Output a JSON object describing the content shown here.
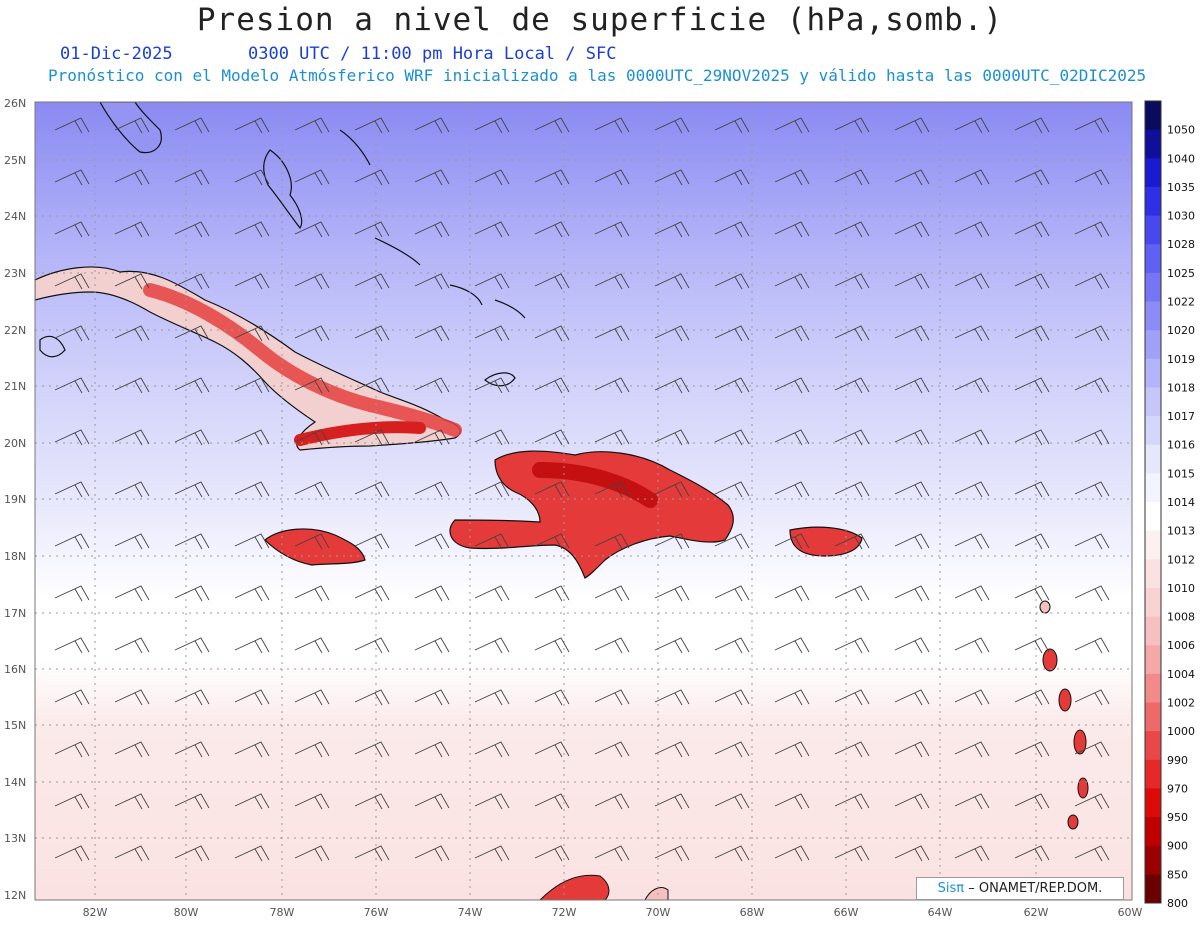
{
  "title": "Presion a nivel de superficie (hPa,somb.)",
  "date": "01-Dic-2025",
  "valid_time": "0300 UTC / 11:00 pm Hora Local / SFC",
  "description": "Pronóstico con el Modelo Atmósferico WRF inicializado a las 0000UTC_29NOV2025 y válido hasta las  0000UTC_02DIC2025",
  "lat_labels": [
    "26N",
    "25N",
    "24N",
    "23N",
    "22N",
    "21N",
    "20N",
    "19N",
    "18N",
    "17N",
    "16N",
    "15N",
    "14N",
    "13N",
    "12N"
  ],
  "lon_labels": [
    "82W",
    "80W",
    "78W",
    "76W",
    "74W",
    "72W",
    "70W",
    "68W",
    "66W",
    "64W",
    "62W",
    "60W"
  ],
  "colorbar": {
    "labels": [
      "1050",
      "1040",
      "1035",
      "1030",
      "1028",
      "1025",
      "1022",
      "1020",
      "1019",
      "1018",
      "1017",
      "1016",
      "1015",
      "1014",
      "1013",
      "1012",
      "1010",
      "1008",
      "1006",
      "1004",
      "1002",
      "1000",
      "990",
      "970",
      "950",
      "900",
      "850",
      "800"
    ],
    "colors": [
      "#0b0b5e",
      "#0f0f9a",
      "#1a1ad0",
      "#2f2fe6",
      "#4848ee",
      "#6060f2",
      "#7676f4",
      "#8c8cf6",
      "#a0a0f8",
      "#b4b4fa",
      "#c6c6fb",
      "#d6d6fc",
      "#e6e6fd",
      "#f4f4fe",
      "#ffffff",
      "#fdf0f0",
      "#fbe2e2",
      "#f9d2d2",
      "#f7c0c0",
      "#f5a8a8",
      "#f28a8a",
      "#ee6a6a",
      "#ea4848",
      "#e52828",
      "#dd0a0a",
      "#c00000",
      "#9a0000",
      "#6a0000"
    ]
  },
  "credit": {
    "logo": "Sisπ",
    "text": "– ONAMET/REP.DOM."
  }
}
